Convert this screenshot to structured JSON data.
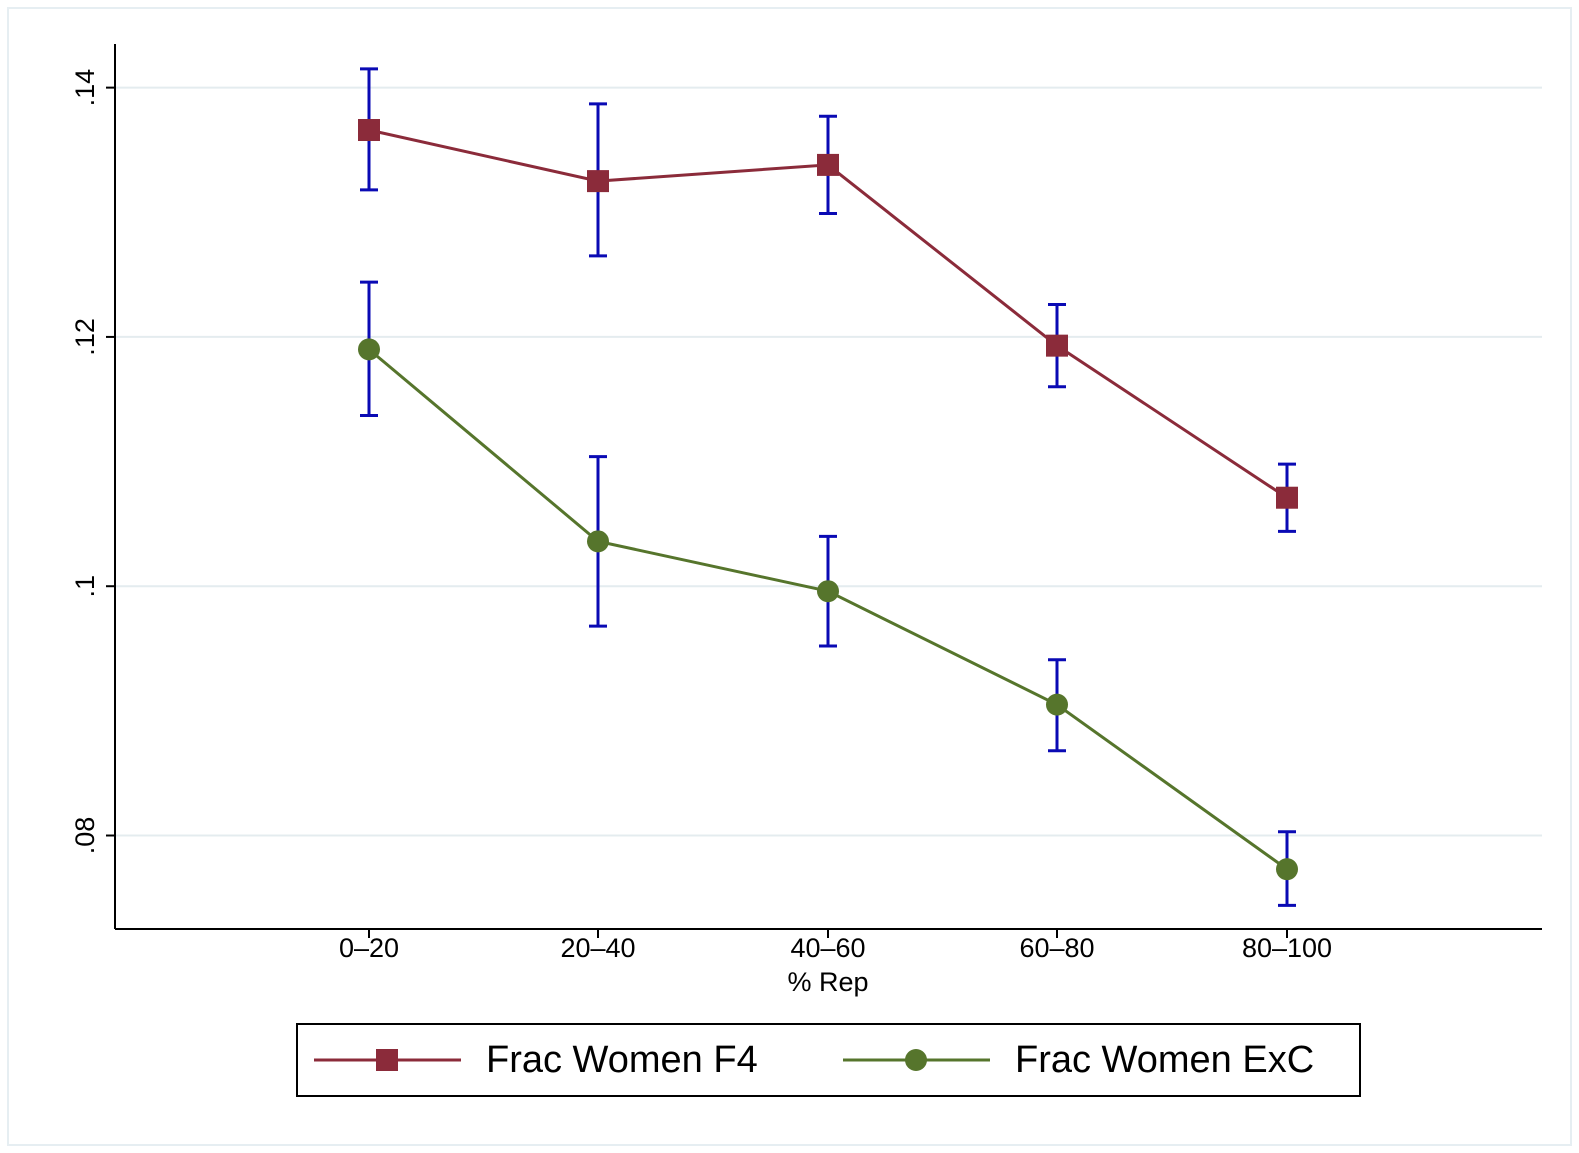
{
  "chart_data": {
    "type": "line",
    "categories": [
      "0–20",
      "20–40",
      "40–60",
      "60–80",
      "80–100"
    ],
    "xlabel": "% Rep",
    "ylabel": "",
    "ylim": [
      0.0725,
      0.1435
    ],
    "yticks": [
      0.08,
      0.1,
      0.12,
      0.14
    ],
    "ytick_labels": [
      ".08",
      ".1",
      ".12",
      ".14"
    ],
    "grid": true,
    "legend_position": "bottom",
    "error_bar_color": "#0a0ab4",
    "series": [
      {
        "name": "Frac Women F4",
        "marker": "square",
        "color": "#8b2b3a",
        "values": [
          0.1366,
          0.1325,
          0.1338,
          0.1193,
          0.1071
        ],
        "lower": [
          0.1318,
          0.1265,
          0.1299,
          0.116,
          0.1044
        ],
        "upper": [
          0.1415,
          0.1387,
          0.1377,
          0.1226,
          0.1098
        ]
      },
      {
        "name": "Frac Women ExC",
        "marker": "circle",
        "color": "#56752c",
        "values": [
          0.119,
          0.1036,
          0.0996,
          0.0905,
          0.0773
        ],
        "lower": [
          0.1137,
          0.0968,
          0.0952,
          0.0868,
          0.0744
        ],
        "upper": [
          0.1244,
          0.1104,
          0.104,
          0.0941,
          0.0803
        ]
      }
    ]
  }
}
